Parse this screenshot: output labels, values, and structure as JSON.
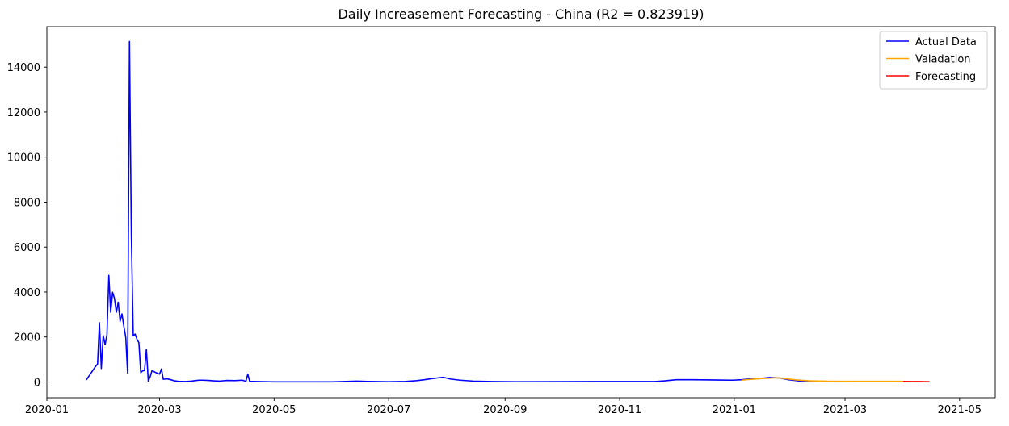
{
  "chart_data": {
    "type": "line",
    "title": "Daily Increasement Forecasting - China (R2 = 0.823919)",
    "xlabel": "",
    "ylabel": "",
    "x_is_date": true,
    "xlim": [
      "2020-01-01",
      "2021-05-20"
    ],
    "ylim": [
      -700,
      15800
    ],
    "x_ticks": [
      "2020-01",
      "2020-03",
      "2020-05",
      "2020-07",
      "2020-09",
      "2020-11",
      "2021-01",
      "2021-03",
      "2021-05"
    ],
    "y_ticks": [
      0,
      2000,
      4000,
      6000,
      8000,
      10000,
      12000,
      14000
    ],
    "grid": false,
    "legend_position": "top-right",
    "series": [
      {
        "name": "Actual Data",
        "color": "#0000ff",
        "points": [
          [
            "2020-01-22",
            90
          ],
          [
            "2020-01-27",
            700
          ],
          [
            "2020-01-28",
            800
          ],
          [
            "2020-01-29",
            2640
          ],
          [
            "2020-01-30",
            600
          ],
          [
            "2020-01-31",
            2060
          ],
          [
            "2020-02-01",
            1660
          ],
          [
            "2020-02-02",
            2100
          ],
          [
            "2020-02-03",
            4740
          ],
          [
            "2020-02-04",
            3100
          ],
          [
            "2020-02-05",
            3990
          ],
          [
            "2020-02-06",
            3720
          ],
          [
            "2020-02-07",
            3100
          ],
          [
            "2020-02-08",
            3550
          ],
          [
            "2020-02-09",
            2700
          ],
          [
            "2020-02-10",
            3030
          ],
          [
            "2020-02-11",
            2480
          ],
          [
            "2020-02-12",
            2000
          ],
          [
            "2020-02-13",
            400
          ],
          [
            "2020-02-14",
            15140
          ],
          [
            "2020-02-15",
            6500
          ],
          [
            "2020-02-16",
            2050
          ],
          [
            "2020-02-17",
            2130
          ],
          [
            "2020-02-18",
            1900
          ],
          [
            "2020-02-19",
            1750
          ],
          [
            "2020-02-20",
            420
          ],
          [
            "2020-02-21",
            500
          ],
          [
            "2020-02-22",
            510
          ],
          [
            "2020-02-23",
            1450
          ],
          [
            "2020-02-24",
            40
          ],
          [
            "2020-02-25",
            230
          ],
          [
            "2020-02-26",
            510
          ],
          [
            "2020-02-28",
            420
          ],
          [
            "2020-03-01",
            350
          ],
          [
            "2020-03-02",
            580
          ],
          [
            "2020-03-03",
            120
          ],
          [
            "2020-03-05",
            140
          ],
          [
            "2020-03-07",
            100
          ],
          [
            "2020-03-09",
            50
          ],
          [
            "2020-03-11",
            30
          ],
          [
            "2020-03-15",
            20
          ],
          [
            "2020-03-18",
            40
          ],
          [
            "2020-03-20",
            60
          ],
          [
            "2020-03-22",
            80
          ],
          [
            "2020-03-24",
            80
          ],
          [
            "2020-03-27",
            70
          ],
          [
            "2020-03-30",
            50
          ],
          [
            "2020-04-02",
            40
          ],
          [
            "2020-04-06",
            70
          ],
          [
            "2020-04-10",
            60
          ],
          [
            "2020-04-14",
            80
          ],
          [
            "2020-04-16",
            30
          ],
          [
            "2020-04-17",
            350
          ],
          [
            "2020-04-18",
            30
          ],
          [
            "2020-04-22",
            20
          ],
          [
            "2020-05-01",
            5
          ],
          [
            "2020-05-15",
            5
          ],
          [
            "2020-06-01",
            5
          ],
          [
            "2020-06-14",
            40
          ],
          [
            "2020-06-20",
            25
          ],
          [
            "2020-07-01",
            10
          ],
          [
            "2020-07-10",
            25
          ],
          [
            "2020-07-16",
            60
          ],
          [
            "2020-07-20",
            100
          ],
          [
            "2020-07-24",
            150
          ],
          [
            "2020-07-30",
            210
          ],
          [
            "2020-08-03",
            130
          ],
          [
            "2020-08-08",
            80
          ],
          [
            "2020-08-15",
            40
          ],
          [
            "2020-08-25",
            20
          ],
          [
            "2020-09-10",
            10
          ],
          [
            "2020-10-01",
            15
          ],
          [
            "2020-10-20",
            20
          ],
          [
            "2020-11-05",
            20
          ],
          [
            "2020-11-20",
            20
          ],
          [
            "2020-11-25",
            50
          ],
          [
            "2020-12-01",
            100
          ],
          [
            "2020-12-10",
            100
          ],
          [
            "2020-12-20",
            90
          ],
          [
            "2020-12-31",
            80
          ],
          [
            "2021-01-05",
            100
          ],
          [
            "2021-01-10",
            140
          ],
          [
            "2021-01-15",
            160
          ],
          [
            "2021-01-20",
            200
          ],
          [
            "2021-01-25",
            180
          ],
          [
            "2021-01-30",
            100
          ],
          [
            "2021-02-05",
            40
          ],
          [
            "2021-02-12",
            20
          ],
          [
            "2021-02-20",
            15
          ],
          [
            "2021-03-01",
            15
          ],
          [
            "2021-03-10",
            20
          ],
          [
            "2021-03-15",
            25
          ],
          [
            "2021-03-20",
            20
          ],
          [
            "2021-03-31",
            20
          ]
        ]
      },
      {
        "name": "Valadation",
        "color": "#ffa500",
        "points": [
          [
            "2021-01-05",
            80
          ],
          [
            "2021-01-10",
            120
          ],
          [
            "2021-01-15",
            150
          ],
          [
            "2021-01-20",
            170
          ],
          [
            "2021-01-24",
            190
          ],
          [
            "2021-01-28",
            150
          ],
          [
            "2021-02-03",
            90
          ],
          [
            "2021-02-10",
            50
          ],
          [
            "2021-02-20",
            35
          ],
          [
            "2021-03-01",
            30
          ],
          [
            "2021-03-10",
            30
          ],
          [
            "2021-03-20",
            30
          ],
          [
            "2021-04-01",
            30
          ]
        ]
      },
      {
        "name": "Forecasting",
        "color": "#ff0000",
        "points": [
          [
            "2021-04-01",
            25
          ],
          [
            "2021-04-05",
            22
          ],
          [
            "2021-04-10",
            18
          ],
          [
            "2021-04-15",
            10
          ]
        ]
      }
    ]
  }
}
